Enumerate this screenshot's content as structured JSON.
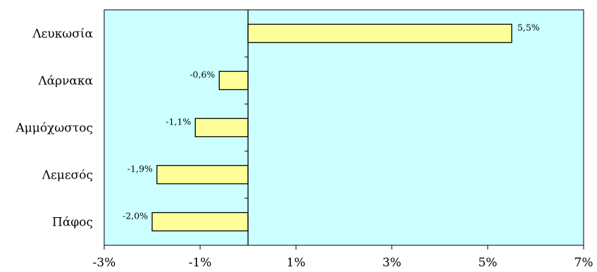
{
  "chart_data": {
    "type": "bar",
    "orientation": "horizontal",
    "categories": [
      "Λευκωσία",
      "Λάρνακα",
      "Αμμόχωστος",
      "Λεμεσός",
      "Πάφος"
    ],
    "values": [
      5.5,
      -0.6,
      -1.1,
      -1.9,
      -2.0
    ],
    "data_labels": [
      "5,5%",
      "-0,6%",
      "-1,1%",
      "-1,9%",
      "-2,0%"
    ],
    "xlim": [
      -3,
      7
    ],
    "x_ticks": [
      -3,
      -1,
      1,
      3,
      5,
      7
    ],
    "x_tick_labels": [
      "-3%",
      "-1%",
      "1%",
      "3%",
      "5%",
      "7%"
    ],
    "title": "",
    "xlabel": "",
    "ylabel": "",
    "grid": false,
    "legend": "none",
    "colors": {
      "plot_background": "#ccffff",
      "bar_fill": "#ffff99",
      "bar_stroke": "#000000",
      "axis": "#000000"
    }
  }
}
